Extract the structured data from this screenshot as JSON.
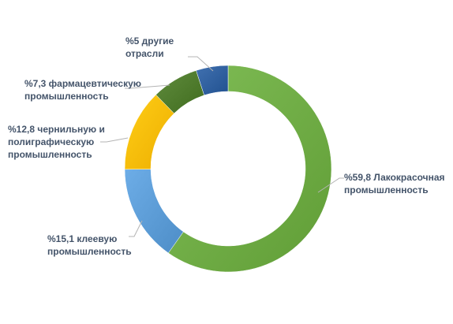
{
  "chart_data": {
    "type": "pie",
    "variant": "doughnut",
    "start_angle_deg": 0,
    "direction": "clockwise",
    "slices": [
      {
        "value": 59.8,
        "color": "#6eab44",
        "label_lines": [
          "%59,8 Лакокрасочная",
          "промышленность"
        ]
      },
      {
        "value": 15.1,
        "color": "#5b9bd5",
        "label_lines": [
          "%15,1  клеевую",
          "промышленность"
        ]
      },
      {
        "value": 12.8,
        "color": "#fbbc05",
        "label_lines": [
          "%12,8 чернильную и",
          "полиграфическую",
          "промышленность"
        ]
      },
      {
        "value": 7.3,
        "color": "#4e7a2c",
        "label_lines": [
          "%7,3 фармацевтическую",
          "промышленность"
        ]
      },
      {
        "value": 5,
        "color": "#2f5f9e",
        "label_lines": [
          "%5  другие",
          "отрасли"
        ]
      }
    ],
    "title": "",
    "legend": "none"
  }
}
